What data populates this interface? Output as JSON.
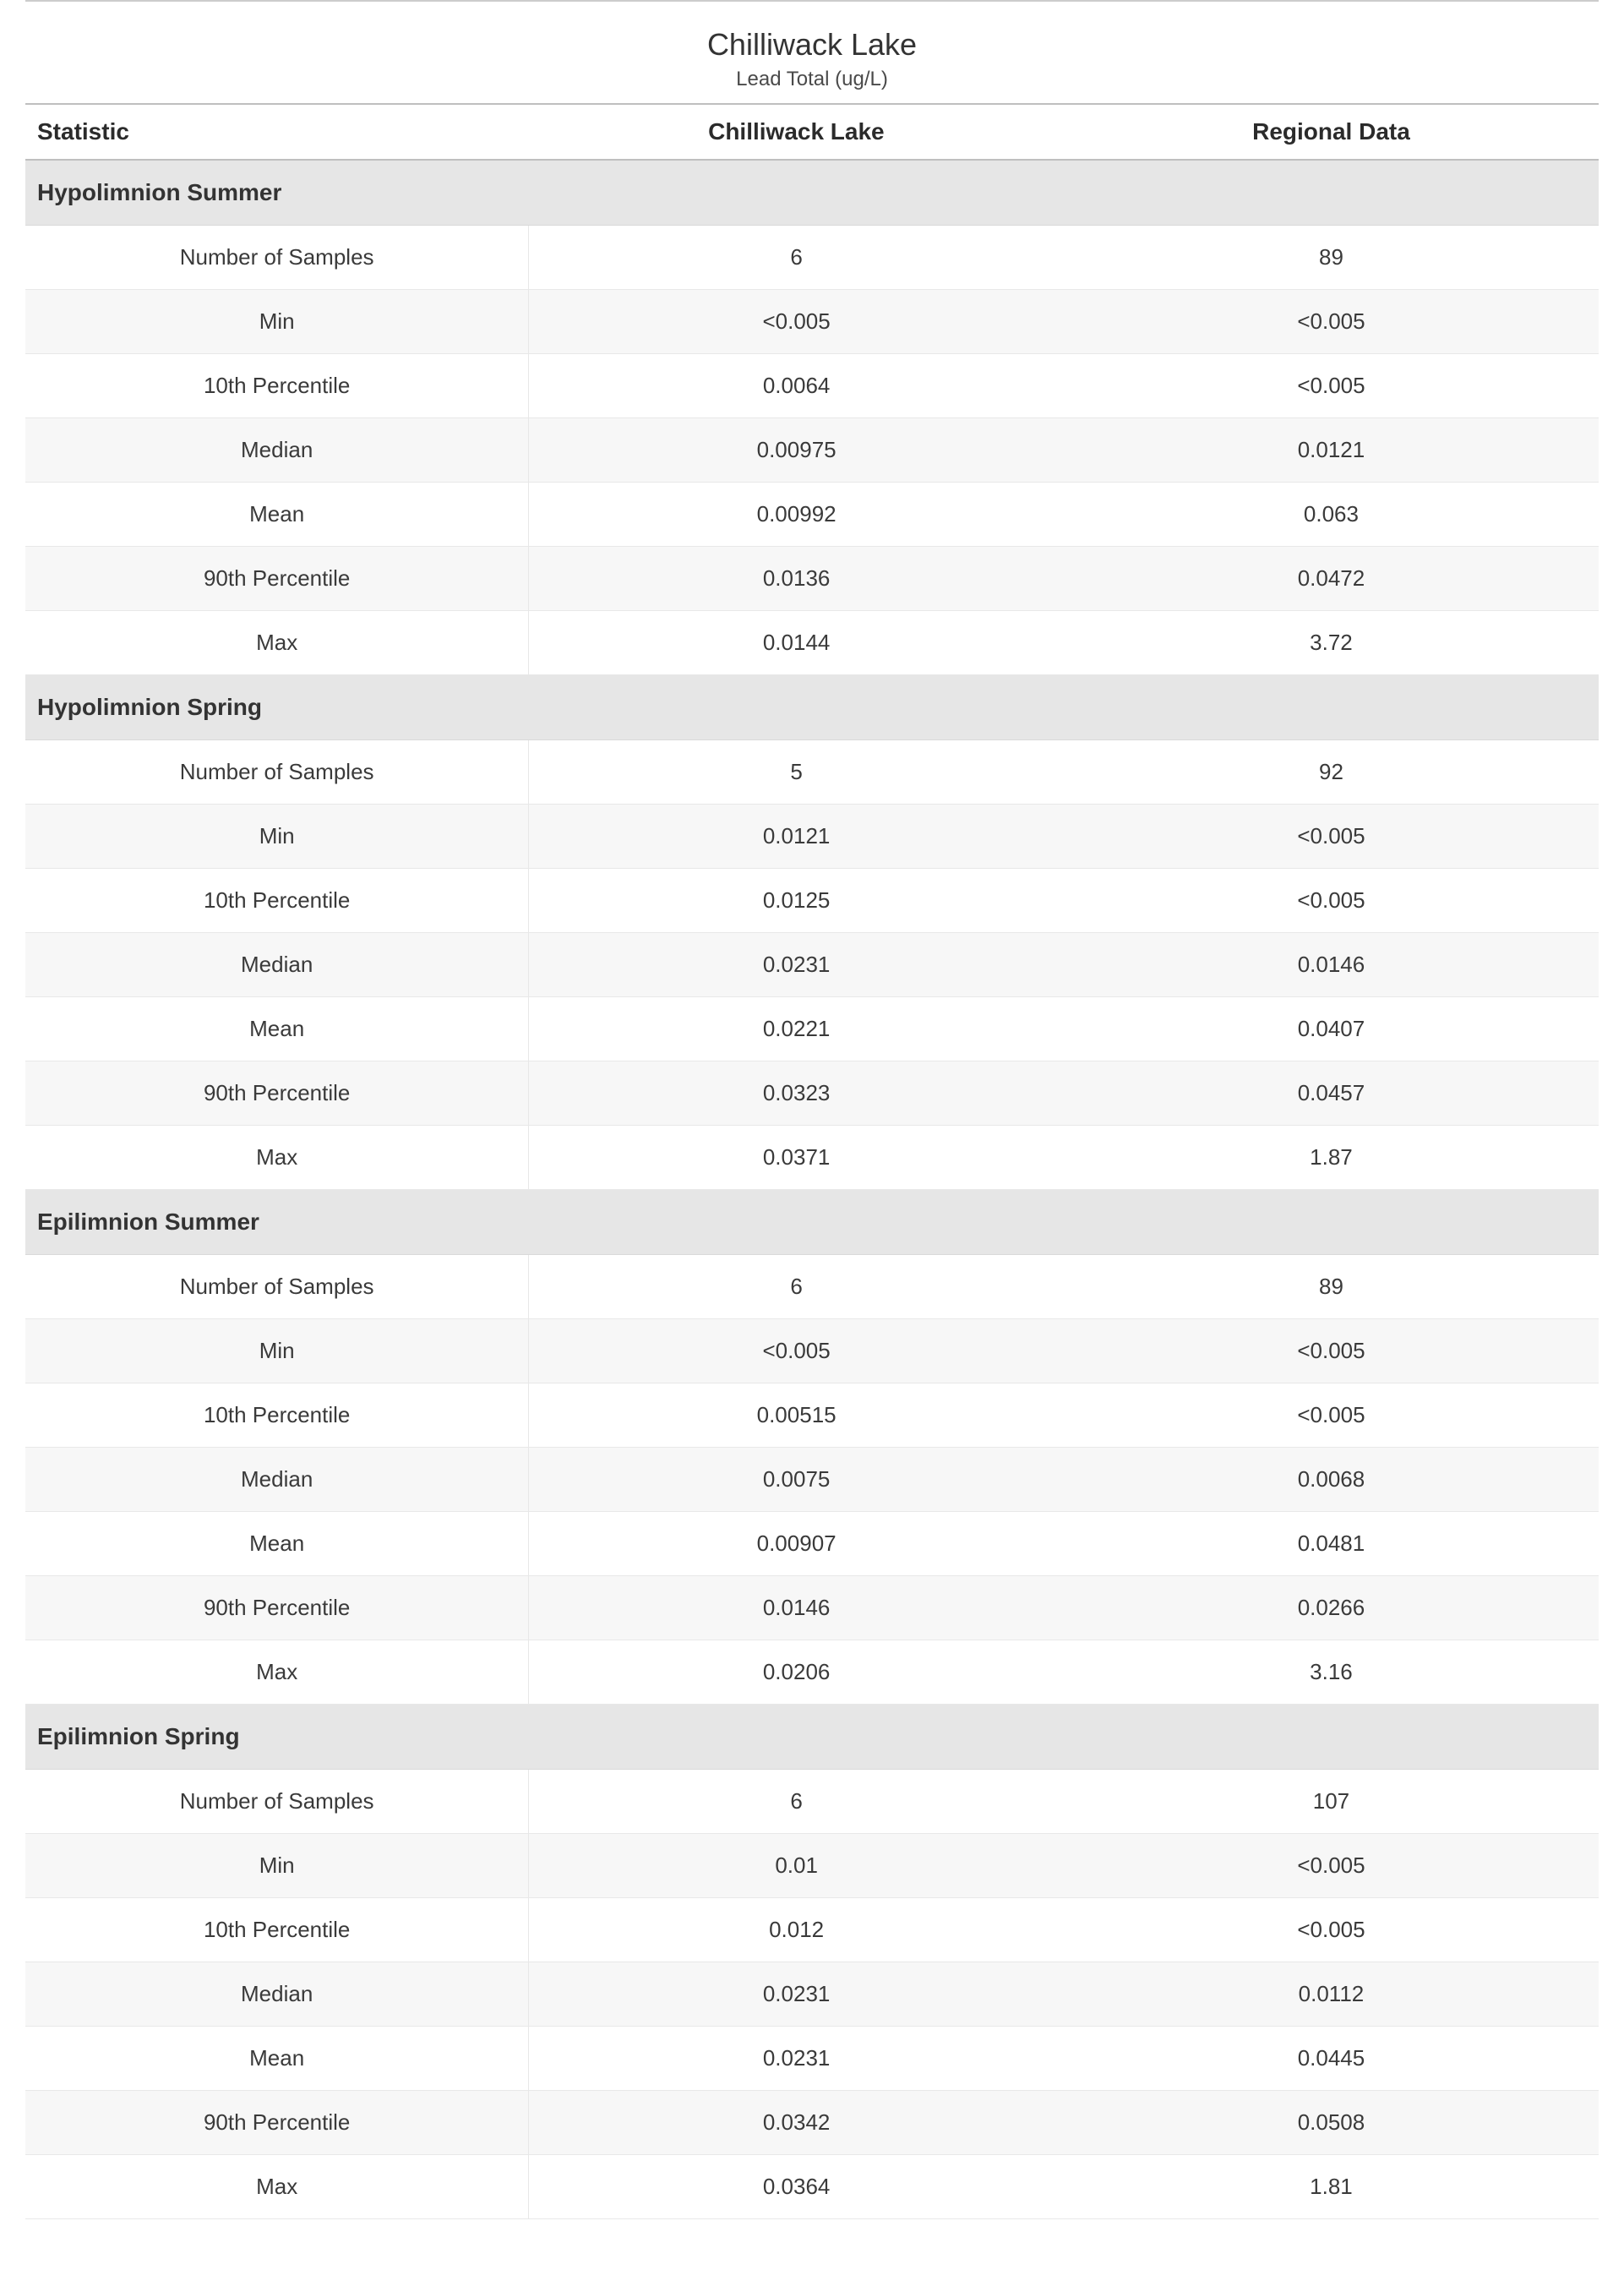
{
  "colors": {
    "text_primary": "#333333",
    "text_heading": "#2b2b2b",
    "section_bg": "#e6e6e6",
    "row_alt_bg": "#f7f7f7",
    "border_strong": "#bfbfbf",
    "border_light": "#e8e8e8",
    "page_bg": "#ffffff"
  },
  "typography": {
    "title_fontsize": 36,
    "subtitle_fontsize": 24,
    "header_fontsize": 28,
    "section_fontsize": 28,
    "cell_fontsize": 26,
    "font_family": "Segoe UI"
  },
  "layout": {
    "column_widths_pct": [
      32,
      34,
      34
    ]
  },
  "page": {
    "title": "Chilliwack Lake",
    "subtitle": "Lead Total (ug/L)"
  },
  "table": {
    "headers": {
      "statistic": "Statistic",
      "col1": "Chilliwack Lake",
      "col2": "Regional Data"
    },
    "statistic_labels": [
      "Number of Samples",
      "Min",
      "10th Percentile",
      "Median",
      "Mean",
      "90th Percentile",
      "Max"
    ],
    "sections": [
      {
        "title": "Hypolimnion Summer",
        "rows": [
          {
            "col1": "6",
            "col2": "89"
          },
          {
            "col1": "<0.005",
            "col2": "<0.005"
          },
          {
            "col1": "0.0064",
            "col2": "<0.005"
          },
          {
            "col1": "0.00975",
            "col2": "0.0121"
          },
          {
            "col1": "0.00992",
            "col2": "0.063"
          },
          {
            "col1": "0.0136",
            "col2": "0.0472"
          },
          {
            "col1": "0.0144",
            "col2": "3.72"
          }
        ]
      },
      {
        "title": "Hypolimnion Spring",
        "rows": [
          {
            "col1": "5",
            "col2": "92"
          },
          {
            "col1": "0.0121",
            "col2": "<0.005"
          },
          {
            "col1": "0.0125",
            "col2": "<0.005"
          },
          {
            "col1": "0.0231",
            "col2": "0.0146"
          },
          {
            "col1": "0.0221",
            "col2": "0.0407"
          },
          {
            "col1": "0.0323",
            "col2": "0.0457"
          },
          {
            "col1": "0.0371",
            "col2": "1.87"
          }
        ]
      },
      {
        "title": "Epilimnion Summer",
        "rows": [
          {
            "col1": "6",
            "col2": "89"
          },
          {
            "col1": "<0.005",
            "col2": "<0.005"
          },
          {
            "col1": "0.00515",
            "col2": "<0.005"
          },
          {
            "col1": "0.0075",
            "col2": "0.0068"
          },
          {
            "col1": "0.00907",
            "col2": "0.0481"
          },
          {
            "col1": "0.0146",
            "col2": "0.0266"
          },
          {
            "col1": "0.0206",
            "col2": "3.16"
          }
        ]
      },
      {
        "title": "Epilimnion Spring",
        "rows": [
          {
            "col1": "6",
            "col2": "107"
          },
          {
            "col1": "0.01",
            "col2": "<0.005"
          },
          {
            "col1": "0.012",
            "col2": "<0.005"
          },
          {
            "col1": "0.0231",
            "col2": "0.0112"
          },
          {
            "col1": "0.0231",
            "col2": "0.0445"
          },
          {
            "col1": "0.0342",
            "col2": "0.0508"
          },
          {
            "col1": "0.0364",
            "col2": "1.81"
          }
        ]
      }
    ]
  }
}
